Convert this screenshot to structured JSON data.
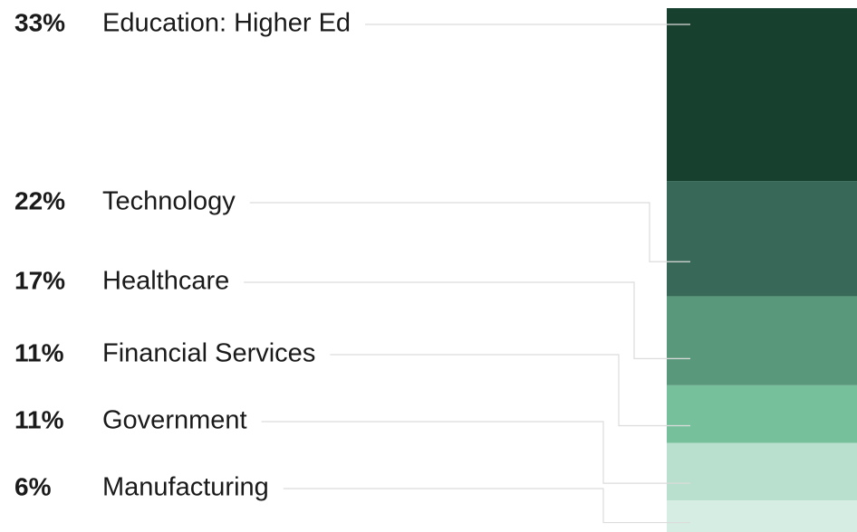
{
  "chart_data": {
    "type": "bar",
    "stacked": true,
    "categories": [
      "Education: Higher Ed",
      "Technology",
      "Healthcare",
      "Financial Services",
      "Government",
      "Manufacturing"
    ],
    "values": [
      33,
      22,
      17,
      11,
      11,
      6
    ],
    "value_labels": [
      "33%",
      "22%",
      "17%",
      "11%",
      "11%",
      "6%"
    ],
    "colors": [
      "#17402f",
      "#376858",
      "#5a987c",
      "#76c09c",
      "#b9e0cf",
      "#d6ede4"
    ]
  }
}
